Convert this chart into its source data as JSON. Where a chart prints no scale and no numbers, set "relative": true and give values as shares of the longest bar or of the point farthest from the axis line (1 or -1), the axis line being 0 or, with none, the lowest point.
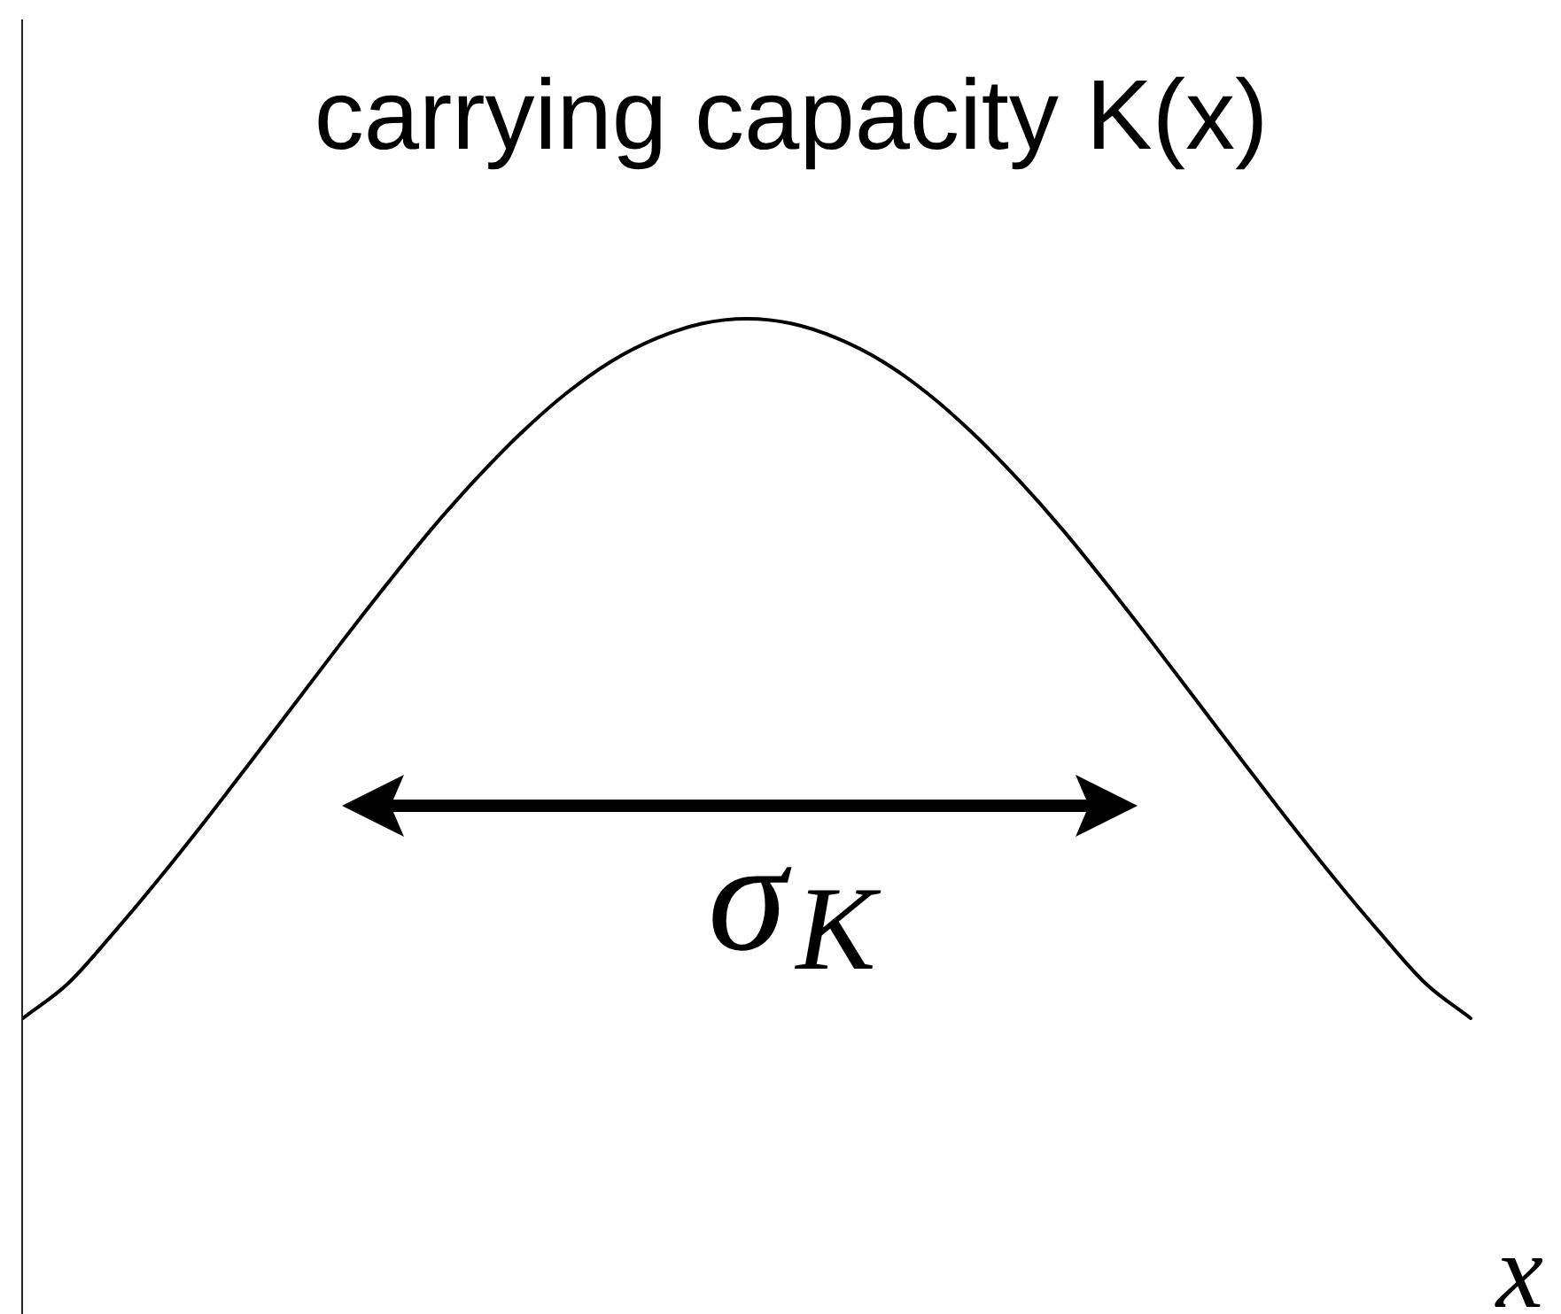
{
  "chart_data": {
    "type": "line",
    "title": "carrying capacity K(x)",
    "xlabel": "x",
    "categories": [
      null,
      null,
      null,
      null,
      null,
      null,
      null,
      null,
      null,
      null,
      null,
      null,
      null,
      null,
      null,
      null,
      null,
      null,
      null,
      null,
      null,
      null,
      null,
      null,
      null,
      null,
      null,
      null,
      null,
      null,
      null,
      null,
      null
    ],
    "values": [
      0,
      0.05,
      0.122,
      0.199,
      0.28,
      0.364,
      0.449,
      0.534,
      0.617,
      0.697,
      0.77,
      0.836,
      0.893,
      0.939,
      0.972,
      0.993,
      1,
      0.993,
      0.972,
      0.939,
      0.893,
      0.836,
      0.77,
      0.697,
      0.617,
      0.534,
      0.449,
      0.364,
      0.28,
      0.199,
      0.122,
      0.05,
      0
    ],
    "color": "#000000",
    "relative": true,
    "marker": "none",
    "annotations": [
      "σ$_{K}$"
    ]
  }
}
